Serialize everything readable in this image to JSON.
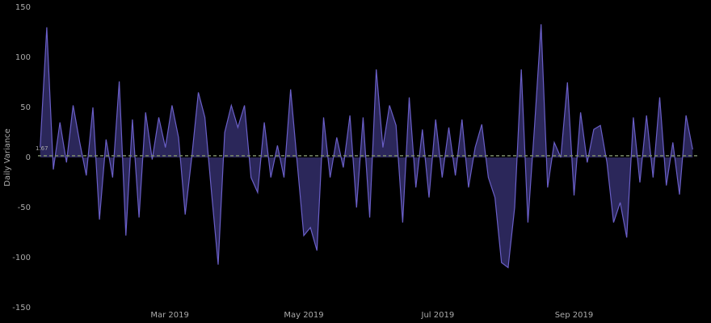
{
  "chart_data": {
    "type": "area",
    "y_label": "Daily Variance",
    "x": [
      "2019-01-01",
      "2019-01-04",
      "2019-01-07",
      "2019-01-10",
      "2019-01-13",
      "2019-01-16",
      "2019-01-19",
      "2019-01-22",
      "2019-01-25",
      "2019-01-28",
      "2019-01-31",
      "2019-02-03",
      "2019-02-06",
      "2019-02-09",
      "2019-02-12",
      "2019-02-15",
      "2019-02-18",
      "2019-02-21",
      "2019-02-24",
      "2019-02-27",
      "2019-03-02",
      "2019-03-05",
      "2019-03-08",
      "2019-03-11",
      "2019-03-14",
      "2019-03-17",
      "2019-03-20",
      "2019-03-23",
      "2019-03-26",
      "2019-03-29",
      "2019-04-01",
      "2019-04-04",
      "2019-04-07",
      "2019-04-10",
      "2019-04-13",
      "2019-04-16",
      "2019-04-19",
      "2019-04-22",
      "2019-04-25",
      "2019-04-28",
      "2019-05-01",
      "2019-05-04",
      "2019-05-07",
      "2019-05-10",
      "2019-05-13",
      "2019-05-16",
      "2019-05-19",
      "2019-05-22",
      "2019-05-25",
      "2019-05-28",
      "2019-05-31",
      "2019-06-03",
      "2019-06-06",
      "2019-06-09",
      "2019-06-12",
      "2019-06-15",
      "2019-06-18",
      "2019-06-21",
      "2019-06-24",
      "2019-06-27",
      "2019-06-30",
      "2019-07-03",
      "2019-07-06",
      "2019-07-09",
      "2019-07-12",
      "2019-07-15",
      "2019-07-18",
      "2019-07-21",
      "2019-07-24",
      "2019-07-27",
      "2019-07-30",
      "2019-08-02",
      "2019-08-05",
      "2019-08-08",
      "2019-08-11",
      "2019-08-14",
      "2019-08-17",
      "2019-08-20",
      "2019-08-23",
      "2019-08-26",
      "2019-08-29",
      "2019-09-01",
      "2019-09-04",
      "2019-09-07",
      "2019-09-10",
      "2019-09-13",
      "2019-09-16",
      "2019-09-19",
      "2019-09-22",
      "2019-09-25",
      "2019-09-28",
      "2019-10-01",
      "2019-10-04",
      "2019-10-07",
      "2019-10-10",
      "2019-10-13",
      "2019-10-16",
      "2019-10-19",
      "2019-10-22",
      "2019-10-25"
    ],
    "values": [
      10,
      130,
      -12,
      35,
      -5,
      52,
      15,
      -18,
      50,
      -62,
      18,
      -20,
      76,
      -78,
      38,
      -60,
      45,
      -2,
      40,
      10,
      52,
      20,
      -57,
      0,
      65,
      40,
      -35,
      -107,
      25,
      52,
      30,
      52,
      -20,
      -35,
      35,
      -20,
      12,
      -20,
      68,
      -5,
      -78,
      -70,
      -93,
      40,
      -20,
      20,
      -10,
      42,
      -50,
      40,
      -60,
      88,
      10,
      52,
      32,
      -65,
      60,
      -30,
      28,
      -40,
      38,
      -20,
      30,
      -18,
      38,
      -30,
      10,
      33,
      -20,
      -40,
      -105,
      -110,
      -50,
      88,
      -65,
      30,
      133,
      -30,
      15,
      0,
      75,
      -38,
      45,
      -5,
      28,
      32,
      -5,
      -65,
      -45,
      -80,
      40,
      -25,
      42,
      -20,
      60,
      -28,
      15,
      -37,
      42,
      8
    ],
    "color": "#6a5fc8",
    "fill": "#2b275a",
    "xlim": [
      "2018-12-31",
      "2019-10-26"
    ],
    "xticks": [
      {
        "value": "2019-03-01",
        "label": "Mar 2019"
      },
      {
        "value": "2019-05-01",
        "label": "May 2019"
      },
      {
        "value": "2019-07-01",
        "label": "Jul 2019"
      },
      {
        "value": "2019-09-01",
        "label": "Sep 2019"
      }
    ],
    "ylim": [
      -150,
      150
    ],
    "yticks": [
      -150,
      -100,
      -50,
      0,
      50,
      100,
      150
    ],
    "reference_line": {
      "value": 1.67,
      "label": "1.67",
      "color": "#7a8a6a"
    }
  }
}
